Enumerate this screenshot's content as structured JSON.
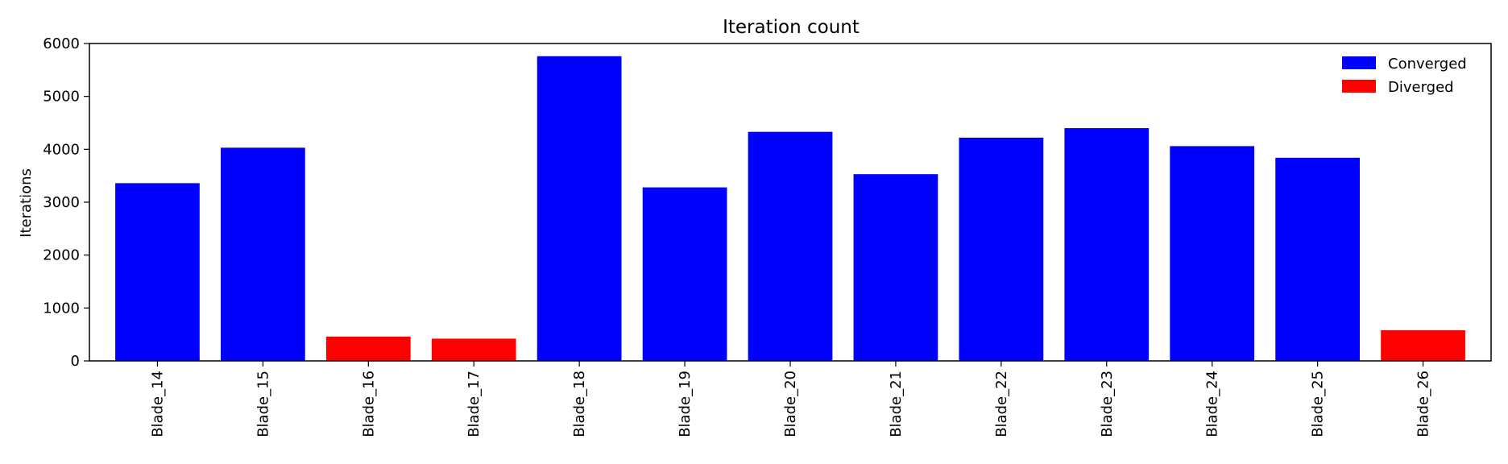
{
  "chart_data": {
    "type": "bar",
    "title": "Iteration count",
    "xlabel": "",
    "ylabel": "Iterations",
    "ylim": [
      0,
      6000
    ],
    "yticks": [
      0,
      1000,
      2000,
      3000,
      4000,
      5000,
      6000
    ],
    "grid": false,
    "legend_position": "top-right",
    "categories": [
      "Blade_14",
      "Blade_15",
      "Blade_16",
      "Blade_17",
      "Blade_18",
      "Blade_19",
      "Blade_20",
      "Blade_21",
      "Blade_22",
      "Blade_23",
      "Blade_24",
      "Blade_25",
      "Blade_26"
    ],
    "values": [
      3360,
      4030,
      460,
      420,
      5760,
      3280,
      4330,
      3530,
      4220,
      4400,
      4060,
      3840,
      580
    ],
    "status": [
      "Converged",
      "Converged",
      "Diverged",
      "Diverged",
      "Converged",
      "Converged",
      "Converged",
      "Converged",
      "Converged",
      "Converged",
      "Converged",
      "Converged",
      "Diverged"
    ],
    "series": [
      {
        "name": "Converged",
        "color": "#0000ff"
      },
      {
        "name": "Diverged",
        "color": "#ff0000"
      }
    ]
  }
}
